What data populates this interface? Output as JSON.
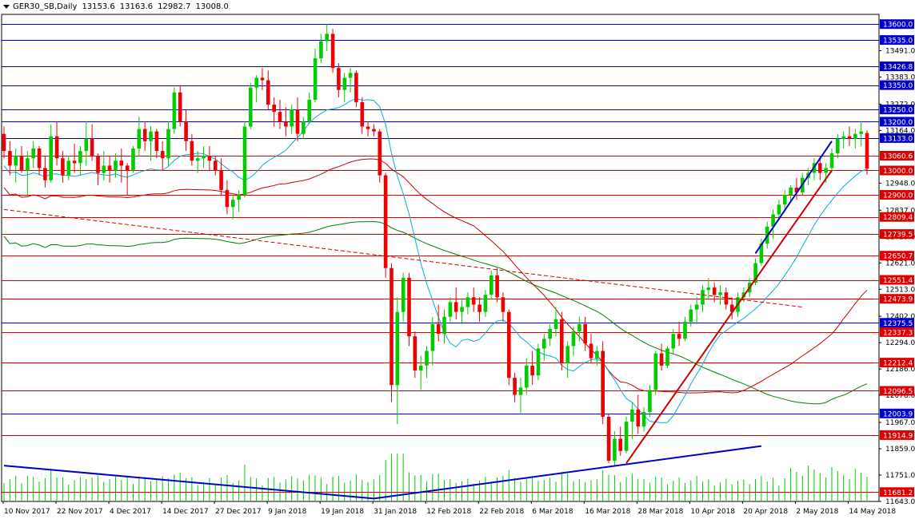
{
  "header": {
    "symbol": "GER30_SB,Daily",
    "open": "13153.6",
    "high": "13163.6",
    "low": "12982.7",
    "close": "13008.0"
  },
  "chart_data": {
    "type": "candlestick",
    "symbol": "GER30_SB",
    "timeframe": "Daily",
    "ylim": [
      11643.0,
      13640.0
    ],
    "x_tick_labels": [
      "10 Nov 2017",
      "22 Nov 2017",
      "4 Dec 2017",
      "14 Dec 2017",
      "27 Dec 2017",
      "9 Jan 2018",
      "19 Jan 2018",
      "31 Jan 2018",
      "12 Feb 2018",
      "22 Feb 2018",
      "6 Mar 2018",
      "16 Mar 2018",
      "28 Mar 2018",
      "10 Apr 2018",
      "20 Apr 2018",
      "2 May 2018",
      "14 May 2018"
    ],
    "y_tick_labels": [
      "13491.0",
      "13383.0",
      "13272.0",
      "13164.0",
      "12948.0",
      "12837.0",
      "12729.0",
      "12621.0",
      "12513.0",
      "12402.0",
      "12294.0",
      "12186.0",
      "12078.0",
      "11967.0",
      "11859.0",
      "11751.0",
      "11643.0"
    ],
    "horizontal_levels": [
      {
        "value": 13600.0,
        "label": "13600.0",
        "color": "#0000cc"
      },
      {
        "value": 13535.0,
        "label": "13535.0",
        "color": "#0000cc"
      },
      {
        "value": 13426.8,
        "label": "13426.8",
        "color": "#0000cc"
      },
      {
        "value": 13350.0,
        "label": "13350.0",
        "color": "#0000cc"
      },
      {
        "value": 13250.0,
        "label": "13250.0",
        "color": "#0000cc"
      },
      {
        "value": 13200.0,
        "label": "13200.0",
        "color": "#0000cc"
      },
      {
        "value": 13133.0,
        "label": "13133.0",
        "color": "#0000cc"
      },
      {
        "value": 13060.6,
        "label": "13060.6",
        "color": "#dd0000"
      },
      {
        "value": 13000.0,
        "label": "13000.0",
        "color": "#dd0000"
      },
      {
        "value": 12900.0,
        "label": "12900.0",
        "color": "#dd0000"
      },
      {
        "value": 12809.4,
        "label": "12809.4",
        "color": "#dd0000"
      },
      {
        "value": 12739.5,
        "label": "12739.5",
        "color": "#dd0000"
      },
      {
        "value": 12650.7,
        "label": "12650.7",
        "color": "#dd0000"
      },
      {
        "value": 12551.4,
        "label": "12551.4",
        "color": "#dd0000"
      },
      {
        "value": 12473.9,
        "label": "12473.9",
        "color": "#dd0000"
      },
      {
        "value": 12375.5,
        "label": "12375.5",
        "color": "#0000cc"
      },
      {
        "value": 12337.3,
        "label": "12337.3",
        "color": "#dd0000"
      },
      {
        "value": 12212.4,
        "label": "12212.4",
        "color": "#dd0000"
      },
      {
        "value": 12096.5,
        "label": "12096.5",
        "color": "#dd0000"
      },
      {
        "value": 12003.9,
        "label": "12003.9",
        "color": "#0000cc"
      },
      {
        "value": 11914.9,
        "label": "11914.9",
        "color": "#dd0000"
      },
      {
        "value": 11681.2,
        "label": "11681.2",
        "color": "#dd0000"
      }
    ],
    "candles": [
      [
        13150,
        13180,
        13050,
        13080
      ],
      [
        13080,
        13120,
        12980,
        13020
      ],
      [
        13020,
        13090,
        12950,
        13060
      ],
      [
        13060,
        13100,
        12990,
        13000
      ],
      [
        13000,
        13080,
        12900,
        13050
      ],
      [
        13050,
        13120,
        13010,
        13090
      ],
      [
        13090,
        13100,
        12980,
        13010
      ],
      [
        13010,
        13060,
        12930,
        12960
      ],
      [
        12960,
        13190,
        12950,
        13140
      ],
      [
        13140,
        13200,
        13020,
        13050
      ],
      [
        13050,
        13080,
        12950,
        12980
      ],
      [
        12980,
        13060,
        12960,
        13040
      ],
      [
        13040,
        13110,
        12990,
        13030
      ],
      [
        13030,
        13100,
        12980,
        13080
      ],
      [
        13080,
        13200,
        13020,
        13130
      ],
      [
        13130,
        13190,
        13040,
        13060
      ],
      [
        13060,
        13070,
        12940,
        12990
      ],
      [
        12990,
        13080,
        12960,
        13020
      ],
      [
        13020,
        13060,
        12950,
        13000
      ],
      [
        13000,
        13070,
        12970,
        13040
      ],
      [
        13040,
        13090,
        12950,
        13020
      ],
      [
        13020,
        13030,
        12900,
        13000
      ],
      [
        13000,
        13100,
        12990,
        13090
      ],
      [
        13090,
        13220,
        13060,
        13170
      ],
      [
        13170,
        13200,
        13080,
        13120
      ],
      [
        13120,
        13180,
        13040,
        13160
      ],
      [
        13160,
        13170,
        13050,
        13080
      ],
      [
        13080,
        13120,
        13000,
        13050
      ],
      [
        13050,
        13200,
        13020,
        13170
      ],
      [
        13170,
        13340,
        13150,
        13320
      ],
      [
        13320,
        13350,
        13180,
        13200
      ],
      [
        13200,
        13250,
        13080,
        13120
      ],
      [
        13120,
        13150,
        13020,
        13040
      ],
      [
        13040,
        13080,
        12990,
        13050
      ],
      [
        13050,
        13100,
        13010,
        13060
      ],
      [
        13060,
        13100,
        13000,
        13040
      ],
      [
        13040,
        13060,
        12980,
        13000
      ],
      [
        13000,
        13050,
        12900,
        12920
      ],
      [
        12920,
        12960,
        12820,
        12850
      ],
      [
        12850,
        12900,
        12800,
        12880
      ],
      [
        12880,
        12920,
        12830,
        12900
      ],
      [
        12900,
        13200,
        12890,
        13180
      ],
      [
        13180,
        13360,
        13170,
        13340
      ],
      [
        13340,
        13390,
        13280,
        13380
      ],
      [
        13380,
        13420,
        13330,
        13370
      ],
      [
        13370,
        13410,
        13250,
        13270
      ],
      [
        13270,
        13300,
        13180,
        13240
      ],
      [
        13240,
        13290,
        13170,
        13200
      ],
      [
        13200,
        13260,
        13140,
        13180
      ],
      [
        13180,
        13270,
        13150,
        13250
      ],
      [
        13250,
        13300,
        13120,
        13150
      ],
      [
        13150,
        13220,
        13130,
        13200
      ],
      [
        13200,
        13320,
        13190,
        13290
      ],
      [
        13290,
        13500,
        13280,
        13460
      ],
      [
        13460,
        13560,
        13440,
        13530
      ],
      [
        13530,
        13600,
        13490,
        13560
      ],
      [
        13560,
        13580,
        13400,
        13420
      ],
      [
        13420,
        13440,
        13300,
        13330
      ],
      [
        13330,
        13400,
        13280,
        13380
      ],
      [
        13380,
        13420,
        13320,
        13400
      ],
      [
        13400,
        13410,
        13260,
        13280
      ],
      [
        13280,
        13300,
        13150,
        13180
      ],
      [
        13180,
        13200,
        13140,
        13170
      ],
      [
        13170,
        13190,
        13140,
        13160
      ],
      [
        13160,
        13170,
        12950,
        12980
      ],
      [
        12980,
        12990,
        12560,
        12600
      ],
      [
        12600,
        12620,
        12050,
        12120
      ],
      [
        12120,
        12480,
        11960,
        12420
      ],
      [
        12420,
        12580,
        12380,
        12560
      ],
      [
        12560,
        12580,
        12280,
        12320
      ],
      [
        12320,
        12340,
        12150,
        12180
      ],
      [
        12180,
        12240,
        12100,
        12200
      ],
      [
        12200,
        12280,
        12150,
        12260
      ],
      [
        12260,
        12400,
        12200,
        12370
      ],
      [
        12370,
        12450,
        12300,
        12330
      ],
      [
        12330,
        12430,
        12290,
        12400
      ],
      [
        12400,
        12480,
        12380,
        12460
      ],
      [
        12460,
        12520,
        12390,
        12420
      ],
      [
        12420,
        12470,
        12370,
        12440
      ],
      [
        12440,
        12500,
        12410,
        12480
      ],
      [
        12480,
        12520,
        12420,
        12450
      ],
      [
        12450,
        12480,
        12380,
        12420
      ],
      [
        12420,
        12510,
        12400,
        12490
      ],
      [
        12490,
        12590,
        12470,
        12570
      ],
      [
        12570,
        12600,
        12460,
        12480
      ],
      [
        12480,
        12500,
        12380,
        12420
      ],
      [
        12420,
        12430,
        12120,
        12150
      ],
      [
        12150,
        12170,
        12050,
        12080
      ],
      [
        12080,
        12150,
        12000,
        12110
      ],
      [
        12110,
        12230,
        12080,
        12200
      ],
      [
        12200,
        12260,
        12120,
        12160
      ],
      [
        12160,
        12290,
        12140,
        12270
      ],
      [
        12270,
        12330,
        12220,
        12310
      ],
      [
        12310,
        12370,
        12280,
        12350
      ],
      [
        12350,
        12440,
        12320,
        12390
      ],
      [
        12390,
        12420,
        12180,
        12210
      ],
      [
        12210,
        12300,
        12150,
        12280
      ],
      [
        12280,
        12360,
        12240,
        12340
      ],
      [
        12340,
        12400,
        12300,
        12370
      ],
      [
        12370,
        12400,
        12260,
        12290
      ],
      [
        12290,
        12330,
        12210,
        12230
      ],
      [
        12230,
        12280,
        12200,
        12260
      ],
      [
        12260,
        12300,
        11960,
        11990
      ],
      [
        11990,
        12000,
        11800,
        11810
      ],
      [
        11810,
        11930,
        11790,
        11900
      ],
      [
        11900,
        11950,
        11830,
        11850
      ],
      [
        11850,
        11990,
        11840,
        11970
      ],
      [
        11970,
        12050,
        11900,
        12020
      ],
      [
        12020,
        12080,
        11920,
        11950
      ],
      [
        11950,
        12030,
        11930,
        12010
      ],
      [
        12010,
        12120,
        11990,
        12100
      ],
      [
        12100,
        12260,
        12080,
        12250
      ],
      [
        12250,
        12290,
        12180,
        12200
      ],
      [
        12200,
        12280,
        12190,
        12270
      ],
      [
        12270,
        12350,
        12250,
        12330
      ],
      [
        12330,
        12380,
        12280,
        12310
      ],
      [
        12310,
        12400,
        12300,
        12380
      ],
      [
        12380,
        12450,
        12360,
        12430
      ],
      [
        12430,
        12480,
        12370,
        12450
      ],
      [
        12450,
        12530,
        12420,
        12510
      ],
      [
        12510,
        12560,
        12470,
        12520
      ],
      [
        12520,
        12540,
        12460,
        12490
      ],
      [
        12490,
        12530,
        12450,
        12500
      ],
      [
        12500,
        12520,
        12430,
        12450
      ],
      [
        12450,
        12480,
        12390,
        12420
      ],
      [
        12420,
        12500,
        12400,
        12480
      ],
      [
        12480,
        12520,
        12460,
        12500
      ],
      [
        12500,
        12560,
        12480,
        12540
      ],
      [
        12540,
        12640,
        12530,
        12620
      ],
      [
        12620,
        12720,
        12610,
        12700
      ],
      [
        12700,
        12790,
        12680,
        12770
      ],
      [
        12770,
        12840,
        12720,
        12820
      ],
      [
        12820,
        12880,
        12800,
        12860
      ],
      [
        12860,
        12920,
        12830,
        12900
      ],
      [
        12900,
        12940,
        12870,
        12930
      ],
      [
        12930,
        12970,
        12880,
        12910
      ],
      [
        12910,
        12990,
        12900,
        12970
      ],
      [
        12970,
        13010,
        12940,
        12990
      ],
      [
        12990,
        13050,
        12960,
        13030
      ],
      [
        13030,
        13060,
        12960,
        12990
      ],
      [
        12990,
        13030,
        12950,
        13010
      ],
      [
        13010,
        13090,
        12990,
        13070
      ],
      [
        13070,
        13150,
        13050,
        13130
      ],
      [
        13130,
        13160,
        13090,
        13140
      ],
      [
        13140,
        13180,
        13100,
        13130
      ],
      [
        13130,
        13170,
        13090,
        13150
      ],
      [
        13150,
        13200,
        13100,
        13160
      ],
      [
        13153.6,
        13163.6,
        12982.7,
        13008.0
      ]
    ],
    "series": [
      {
        "kind": "moving-average",
        "color": "#00b0d8"
      },
      {
        "kind": "moving-average",
        "color": "#cc0000"
      },
      {
        "kind": "moving-average",
        "color": "#008000"
      },
      {
        "kind": "volume",
        "color": "#00cc00"
      }
    ],
    "trendlines": [
      {
        "color": "#cc0000",
        "style": "dashed"
      },
      {
        "color": "#cc0000",
        "style": "solid"
      },
      {
        "color": "#0000cc",
        "style": "solid"
      },
      {
        "color": "#0000cc",
        "style": "solid"
      },
      {
        "color": "#0000cc",
        "style": "solid"
      }
    ],
    "colors": {
      "bull": "#00cc00",
      "bear": "#ee0000",
      "background": "#ffffff",
      "axis": "#000000"
    },
    "grid": false
  }
}
